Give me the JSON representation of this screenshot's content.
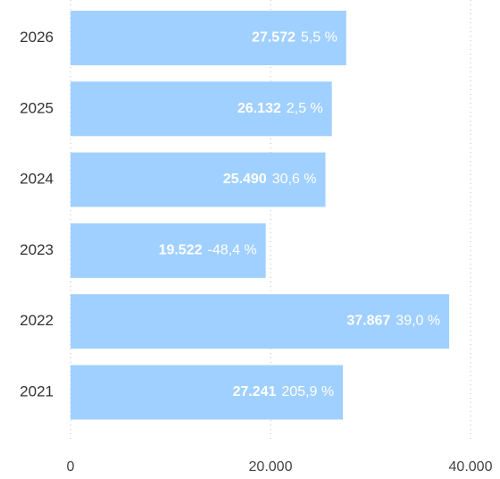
{
  "chart_data": {
    "type": "bar",
    "orientation": "horizontal",
    "categories": [
      "2026",
      "2025",
      "2024",
      "2023",
      "2022",
      "2021"
    ],
    "values": [
      27572,
      26132,
      25490,
      19522,
      37867,
      27241
    ],
    "value_labels": [
      "27.572",
      "26.132",
      "25.490",
      "19.522",
      "37.867",
      "27.241"
    ],
    "change_labels": [
      "5,5 %",
      "2,5 %",
      "30,6 %",
      "-48,4 %",
      "39,0 %",
      "205,9 %"
    ],
    "color": "#a0d0ff",
    "xlim": [
      0,
      40000
    ],
    "xticks": [
      0,
      {
        "value": 20000,
        "label": "20.000"
      },
      {
        "value": 40000,
        "label": "40.000"
      }
    ],
    "grid": true
  }
}
